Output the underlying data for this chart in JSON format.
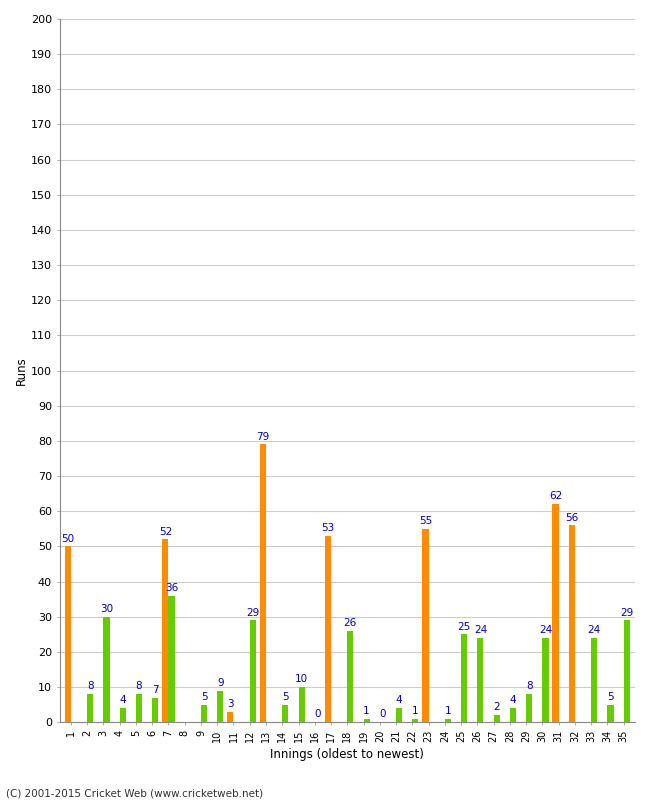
{
  "innings": [
    1,
    2,
    3,
    4,
    5,
    6,
    7,
    8,
    9,
    10,
    11,
    12,
    13,
    14,
    15,
    16,
    17,
    18,
    19,
    20,
    21,
    22,
    23,
    24,
    25,
    26,
    27,
    28,
    29,
    30,
    31,
    32,
    33,
    34,
    35
  ],
  "orange_vals": [
    50,
    0,
    0,
    0,
    0,
    0,
    52,
    0,
    0,
    0,
    3,
    0,
    79,
    0,
    0,
    0,
    53,
    0,
    0,
    0,
    0,
    0,
    55,
    0,
    0,
    0,
    0,
    0,
    0,
    0,
    62,
    56,
    0,
    0,
    0
  ],
  "green_vals": [
    0,
    8,
    30,
    4,
    8,
    7,
    36,
    0,
    5,
    9,
    0,
    29,
    0,
    5,
    10,
    0,
    0,
    26,
    1,
    0,
    4,
    1,
    0,
    1,
    25,
    24,
    2,
    4,
    8,
    24,
    0,
    0,
    24,
    5,
    29
  ],
  "labels_orange": [
    50,
    null,
    null,
    null,
    null,
    null,
    52,
    null,
    null,
    null,
    3,
    null,
    79,
    null,
    null,
    null,
    53,
    null,
    null,
    null,
    null,
    null,
    55,
    null,
    null,
    null,
    null,
    null,
    null,
    null,
    62,
    56,
    null,
    null,
    null
  ],
  "labels_green": [
    null,
    8,
    30,
    4,
    8,
    7,
    36,
    null,
    5,
    9,
    null,
    29,
    null,
    5,
    10,
    0,
    null,
    26,
    1,
    0,
    4,
    1,
    null,
    1,
    25,
    24,
    2,
    4,
    8,
    24,
    null,
    null,
    24,
    5,
    29
  ],
  "orange_color": "#FF8C00",
  "green_color": "#66CC00",
  "ylabel": "Runs",
  "xlabel": "Innings (oldest to newest)",
  "ylim": [
    0,
    200
  ],
  "yticks": [
    0,
    10,
    20,
    30,
    40,
    50,
    60,
    70,
    80,
    90,
    100,
    110,
    120,
    130,
    140,
    150,
    160,
    170,
    180,
    190,
    200
  ],
  "label_color": "#0000CC",
  "label_fontsize": 7.5,
  "footer": "(C) 2001-2015 Cricket Web (www.cricketweb.net)",
  "bg_color": "#FFFFFF",
  "grid_color": "#CCCCCC",
  "tick_color": "#000000",
  "bar_width": 0.38
}
